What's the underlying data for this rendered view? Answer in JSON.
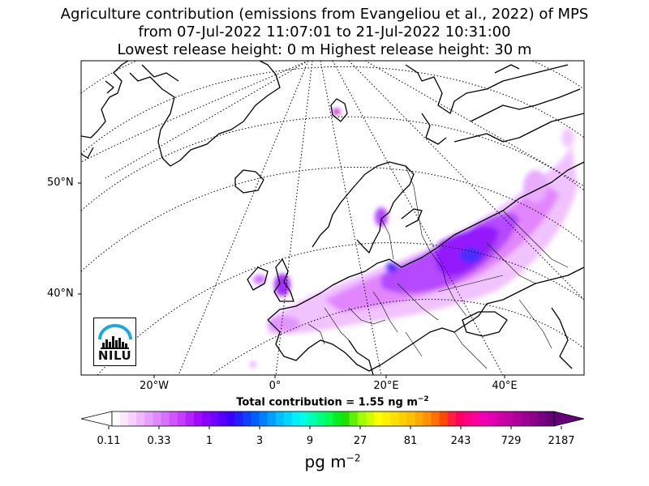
{
  "title": {
    "line1": "Agriculture contribution (emissions from Evangeliou et al., 2022) of MPS",
    "line2": "from 07-Jul-2022 11:07:01 to 21-Jul-2022 10:31:00",
    "line3": "Lowest release height: 0 m      Highest release height: 30 m"
  },
  "map": {
    "lat_labels": [
      "50°N",
      "40°N"
    ],
    "lon_labels": [
      "20°W",
      "0°",
      "20°E",
      "40°E"
    ],
    "graticule": "dotted",
    "colors": {
      "coast": "#000000",
      "borders": "#000000",
      "plume_low": "#e08cff",
      "plume_mid": "#a000ff",
      "plume_high": "#3c1cff"
    }
  },
  "total": {
    "prefix": "Total contribution = 1.55 ng m",
    "exp": "−2"
  },
  "colorbar": {
    "tick_labels": [
      "0.11",
      "0.33",
      "1",
      "3",
      "9",
      "27",
      "81",
      "243",
      "729",
      "2187"
    ],
    "unit": "pg m",
    "unit_exp": "−2",
    "colors": [
      "#ffffff",
      "#fbe8ff",
      "#f6d0ff",
      "#efb8ff",
      "#e8a0ff",
      "#e088ff",
      "#d870ff",
      "#d055ff",
      "#c53cff",
      "#b422ff",
      "#a00aff",
      "#8a00ff",
      "#7000ff",
      "#5500ff",
      "#3a00ff",
      "#2020ff",
      "#1040ff",
      "#0060ff",
      "#0080ff",
      "#00a0ff",
      "#00c0ff",
      "#00d8ff",
      "#00f0ff",
      "#00ffe0",
      "#00ffb0",
      "#00ff80",
      "#00ff50",
      "#00f020",
      "#20e000",
      "#60f000",
      "#a0ff00",
      "#d0ff00",
      "#ffff00",
      "#fff000",
      "#ffe000",
      "#ffd000",
      "#ffc000",
      "#ffaa00",
      "#ff9000",
      "#ff7000",
      "#ff4800",
      "#ff2040",
      "#ff0060",
      "#ff0080",
      "#ff00a0",
      "#f000b0",
      "#e000b0",
      "#d000a8",
      "#c000a0",
      "#ae0098",
      "#9c0090",
      "#8a0088",
      "#780080",
      "#660078"
    ]
  },
  "logo": {
    "text": "NILU",
    "arc_color": "#1aa8e0"
  }
}
